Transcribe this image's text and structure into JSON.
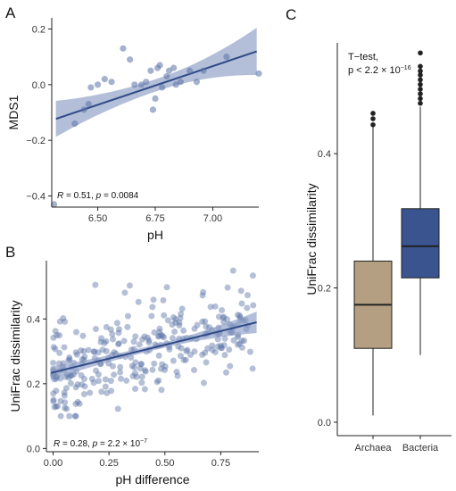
{
  "panels": {
    "a_letter": "A",
    "b_letter": "B",
    "c_letter": "C"
  },
  "colors": {
    "point": "#5b73a6",
    "fit_line": "#2f4a85",
    "ci_band": "#8a9bc4",
    "archaea_box": "#b59f82",
    "bacteria_box": "#3a5490",
    "axis": "#222222"
  },
  "chart_data": [
    {
      "panel": "A",
      "type": "scatter",
      "xlabel": "pH",
      "ylabel": "MDS1",
      "xlim": [
        6.3,
        7.2
      ],
      "ylim": [
        -0.44,
        0.24
      ],
      "xticks": [
        6.5,
        6.75,
        7.0
      ],
      "xtick_labels": [
        "6.50",
        "6.75",
        "7.00"
      ],
      "yticks": [
        -0.4,
        -0.2,
        0.0,
        0.2
      ],
      "ytick_labels": [
        "−0.4",
        "−0.2",
        "0.0",
        "0.2"
      ],
      "annotation": "R = 0.51, p = 0.0084",
      "points": [
        [
          6.31,
          -0.43
        ],
        [
          6.4,
          -0.14
        ],
        [
          6.44,
          -0.09
        ],
        [
          6.46,
          -0.07
        ],
        [
          6.47,
          -0.01
        ],
        [
          6.5,
          0.0
        ],
        [
          6.53,
          0.02
        ],
        [
          6.56,
          0.01
        ],
        [
          6.61,
          0.13
        ],
        [
          6.64,
          0.09
        ],
        [
          6.66,
          0.0
        ],
        [
          6.69,
          0.0
        ],
        [
          6.71,
          0.01
        ],
        [
          6.73,
          0.05
        ],
        [
          6.74,
          -0.09
        ],
        [
          6.75,
          -0.05
        ],
        [
          6.76,
          0.06
        ],
        [
          6.77,
          0.07
        ],
        [
          6.78,
          -0.01
        ],
        [
          6.8,
          0.03
        ],
        [
          6.81,
          0.05
        ],
        [
          6.83,
          0.06
        ],
        [
          6.84,
          0.0
        ],
        [
          6.86,
          0.01
        ],
        [
          6.9,
          0.05
        ],
        [
          6.93,
          0.01
        ],
        [
          6.96,
          0.05
        ],
        [
          7.06,
          0.1
        ],
        [
          7.2,
          0.04
        ]
      ],
      "fit": {
        "slope": 0.2778,
        "intercept": -1.8781
      },
      "ci_halfwidth": {
        "at_min": 0.065,
        "at_center": 0.022,
        "at_max": 0.085
      }
    },
    {
      "panel": "B",
      "type": "scatter",
      "xlabel": "pH difference",
      "ylabel": "UniFrac dissimilarity",
      "xlim": [
        -0.03,
        0.92
      ],
      "ylim": [
        -0.01,
        0.58
      ],
      "xticks": [
        0.0,
        0.25,
        0.5,
        0.75
      ],
      "xtick_labels": [
        "0.00",
        "0.25",
        "0.50",
        "0.75"
      ],
      "yticks": [
        0.0,
        0.2,
        0.4
      ],
      "ytick_labels": [
        "0.0",
        "0.2",
        "0.4"
      ],
      "annotation": "R = 0.28, p = 2.2 × 10",
      "annotation_exp": "−7",
      "fit": {
        "slope": 0.17,
        "intercept": 0.235
      },
      "ci_halfwidth": {
        "at_min": 0.02,
        "at_center": 0.008,
        "at_max": 0.033
      },
      "n_points": 300,
      "points_seed": 7
    },
    {
      "panel": "C",
      "type": "box",
      "categories": [
        "Archaea",
        "Bacteria"
      ],
      "ylabel": "UniFrac dissimilarity",
      "ylim": [
        -0.02,
        0.565
      ],
      "yticks": [
        0.0,
        0.2,
        0.4
      ],
      "ytick_labels": [
        "0.0",
        "0.2",
        "0.4"
      ],
      "annotation_line1": "T−test,",
      "annotation_line2": "p < 2.2 × 10",
      "annotation_exp": "−16",
      "boxes": [
        {
          "name": "Archaea",
          "min": 0.01,
          "q1": 0.11,
          "median": 0.175,
          "q3": 0.24,
          "max": 0.44,
          "outliers": [
            0.443,
            0.452,
            0.46
          ]
        },
        {
          "name": "Bacteria",
          "min": 0.1,
          "q1": 0.215,
          "median": 0.262,
          "q3": 0.318,
          "max": 0.47,
          "outliers": [
            0.475,
            0.482,
            0.489,
            0.496,
            0.503,
            0.51,
            0.517,
            0.523,
            0.53,
            0.55
          ]
        }
      ]
    }
  ]
}
